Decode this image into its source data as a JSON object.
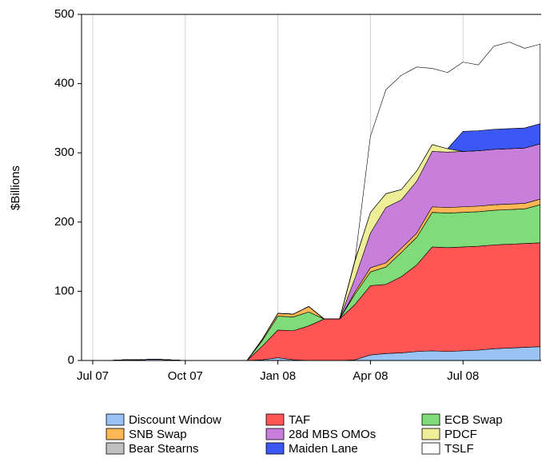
{
  "chart_data": {
    "type": "stacked_area",
    "ylabel": "$Billions",
    "categories": [
      "Jul 07",
      null,
      null,
      null,
      null,
      null,
      "Oct 07",
      null,
      null,
      null,
      null,
      null,
      "Jan 08",
      null,
      null,
      null,
      null,
      null,
      "Apr 08",
      null,
      null,
      null,
      null,
      null,
      "Jul 08",
      null,
      null,
      null,
      null,
      null
    ],
    "ylim": [
      0,
      500
    ],
    "yticks": [
      0,
      100,
      200,
      300,
      400,
      500
    ],
    "grid": "x",
    "legend": "bottom",
    "series": [
      {
        "name": "Discount Window",
        "color": "#99c2f5",
        "values": [
          0,
          0,
          1,
          1,
          2,
          1,
          0,
          0,
          0,
          0,
          0,
          1,
          4,
          1,
          0,
          0,
          0,
          1,
          8,
          10,
          11,
          13,
          14,
          13,
          14,
          15,
          17,
          18,
          19,
          20
        ]
      },
      {
        "name": "TAF",
        "color": "#ff5555",
        "values": [
          0,
          0,
          0,
          0,
          0,
          0,
          0,
          0,
          0,
          0,
          0,
          20,
          40,
          42,
          50,
          60,
          60,
          80,
          100,
          100,
          110,
          125,
          150,
          150,
          150,
          150,
          150,
          150,
          150,
          150
        ]
      },
      {
        "name": "ECB Swap",
        "color": "#80dc78",
        "values": [
          0,
          0,
          0,
          0,
          0,
          0,
          0,
          0,
          0,
          0,
          0,
          8,
          20,
          20,
          20,
          0,
          0,
          15,
          20,
          25,
          35,
          40,
          50,
          50,
          50,
          50,
          50,
          50,
          50,
          55
        ]
      },
      {
        "name": "SNB Swap",
        "color": "#ffb855",
        "values": [
          0,
          0,
          0,
          0,
          0,
          0,
          0,
          0,
          0,
          0,
          0,
          2,
          4,
          4,
          8,
          0,
          0,
          3,
          6,
          6,
          6,
          6,
          8,
          8,
          8,
          8,
          8,
          8,
          8,
          8
        ]
      },
      {
        "name": "28d MBS OMOs",
        "color": "#c87fdc",
        "values": [
          0,
          0,
          0,
          0,
          0,
          0,
          0,
          0,
          0,
          0,
          0,
          0,
          0,
          0,
          0,
          0,
          0,
          20,
          50,
          80,
          70,
          75,
          80,
          80,
          80,
          80,
          80,
          80,
          80,
          80
        ]
      },
      {
        "name": "PDCF",
        "color": "#eeee99",
        "values": [
          0,
          0,
          0,
          0,
          0,
          0,
          0,
          0,
          0,
          0,
          0,
          0,
          0,
          0,
          0,
          0,
          0,
          25,
          30,
          20,
          15,
          15,
          10,
          5,
          0,
          0,
          0,
          0,
          0,
          0
        ]
      },
      {
        "name": "Bear Stearns",
        "color": "#c0c0c0",
        "values": [
          0,
          0,
          0,
          0,
          0,
          0,
          0,
          0,
          0,
          0,
          0,
          0,
          0,
          0,
          0,
          0,
          0,
          1,
          0,
          0,
          0,
          0,
          0,
          0,
          0,
          0,
          0,
          0,
          0,
          0
        ]
      },
      {
        "name": "Maiden Lane",
        "color": "#3b57f5",
        "values": [
          0,
          0,
          0,
          0,
          0,
          0,
          0,
          0,
          0,
          0,
          0,
          0,
          0,
          0,
          0,
          0,
          0,
          0,
          0,
          0,
          0,
          0,
          0,
          0,
          29,
          29,
          29,
          29,
          29,
          29
        ]
      },
      {
        "name": "TSLF",
        "color": "#ffffff",
        "values": [
          0,
          0,
          0,
          0,
          0,
          0,
          0,
          0,
          0,
          0,
          0,
          0,
          0,
          0,
          0,
          0,
          0,
          0,
          110,
          150,
          165,
          150,
          110,
          110,
          100,
          95,
          120,
          125,
          115,
          115
        ]
      }
    ]
  }
}
